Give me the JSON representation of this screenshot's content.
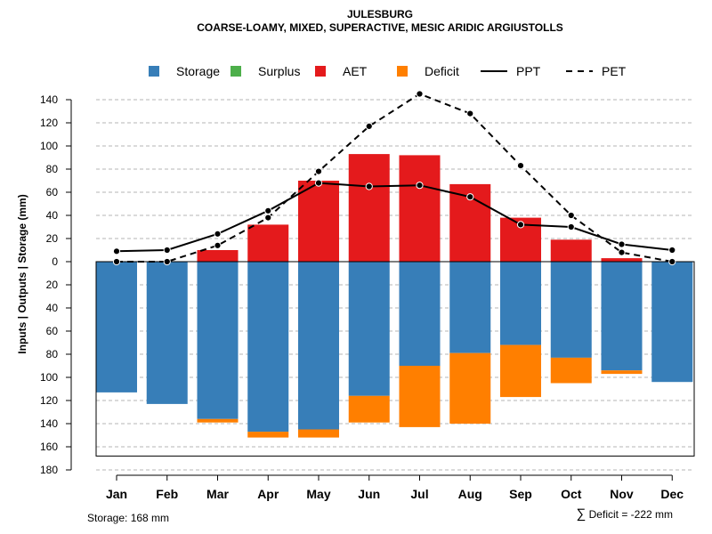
{
  "chart_data": {
    "type": "bar",
    "title": "JULESBURG",
    "subtitle": "COARSE-LOAMY, MIXED, SUPERACTIVE, MESIC ARIDIC ARGIUSTOLLS",
    "ylabel": "Inputs | Outputs | Storage    (mm)",
    "xlabel": "",
    "categories": [
      "Jan",
      "Feb",
      "Mar",
      "Apr",
      "May",
      "Jun",
      "Jul",
      "Aug",
      "Sep",
      "Oct",
      "Nov",
      "Dec"
    ],
    "ylim": [
      -180,
      150
    ],
    "yticks": [
      140,
      120,
      100,
      80,
      60,
      40,
      20,
      0,
      -20,
      -40,
      -60,
      -80,
      -100,
      -120,
      -140,
      -160,
      -180
    ],
    "ytick_labels": [
      "140",
      "120",
      "100",
      "80",
      "60",
      "40",
      "20",
      "0",
      "20",
      "40",
      "60",
      "80",
      "100",
      "120",
      "140",
      "160",
      "180"
    ],
    "storage_capacity": 168,
    "legend": [
      {
        "label": "Storage",
        "kind": "box",
        "color": "#377eb8"
      },
      {
        "label": "Surplus",
        "kind": "box",
        "color": "#4daf4a"
      },
      {
        "label": "AET",
        "kind": "box",
        "color": "#e41a1c"
      },
      {
        "label": "Deficit",
        "kind": "box",
        "color": "#ff7f00"
      },
      {
        "label": "PPT",
        "kind": "solid"
      },
      {
        "label": "PET",
        "kind": "dashed"
      }
    ],
    "colors": {
      "storage": "#377eb8",
      "surplus": "#4daf4a",
      "aet": "#e41a1c",
      "deficit": "#ff7f00"
    },
    "series": [
      {
        "name": "AET",
        "values": [
          0,
          0,
          10,
          32,
          70,
          93,
          92,
          67,
          38,
          19,
          3,
          0
        ]
      },
      {
        "name": "Storage",
        "values": [
          113,
          123,
          136,
          147,
          145,
          116,
          90,
          79,
          72,
          83,
          94,
          104
        ]
      },
      {
        "name": "Deficit",
        "values": [
          0,
          0,
          3,
          5,
          7,
          23,
          53,
          61,
          45,
          22,
          3,
          0
        ]
      },
      {
        "name": "Surplus",
        "values": [
          0,
          0,
          0,
          0,
          0,
          0,
          0,
          0,
          0,
          0,
          0,
          0
        ]
      },
      {
        "name": "PPT",
        "values": [
          9,
          10,
          24,
          44,
          68,
          65,
          66,
          56,
          32,
          30,
          15,
          10
        ]
      },
      {
        "name": "PET",
        "values": [
          0,
          0,
          14,
          38,
          78,
          117,
          145,
          128,
          83,
          40,
          8,
          0
        ]
      }
    ]
  },
  "footer": {
    "storage_label": "Storage: 168 mm",
    "deficit_symbol": "∑",
    "deficit_label": "Deficit = -222 mm"
  }
}
